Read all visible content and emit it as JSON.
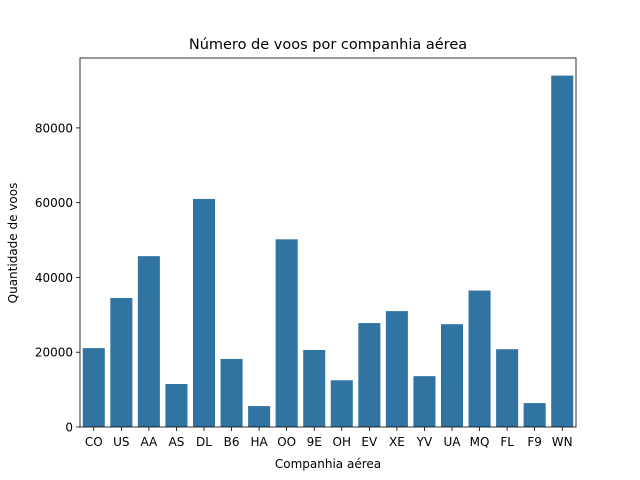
{
  "chart_data": {
    "type": "bar",
    "title": "Número de voos por companhia aérea",
    "xlabel": "Companhia aérea",
    "ylabel": "Quantidade de voos",
    "categories": [
      "CO",
      "US",
      "AA",
      "AS",
      "DL",
      "B6",
      "HA",
      "OO",
      "9E",
      "OH",
      "EV",
      "XE",
      "YV",
      "UA",
      "MQ",
      "FL",
      "F9",
      "WN"
    ],
    "values": [
      21100,
      34500,
      45700,
      11500,
      61000,
      18200,
      5600,
      50200,
      20600,
      12500,
      27800,
      31000,
      13600,
      27500,
      36500,
      20800,
      6400,
      94000
    ],
    "ylim": [
      0,
      98700
    ],
    "yticks": [
      0,
      20000,
      40000,
      60000,
      80000
    ],
    "ytick_labels": [
      "0",
      "20000",
      "40000",
      "60000",
      "80000"
    ],
    "grid": false,
    "bar_color": "#3274a1"
  }
}
